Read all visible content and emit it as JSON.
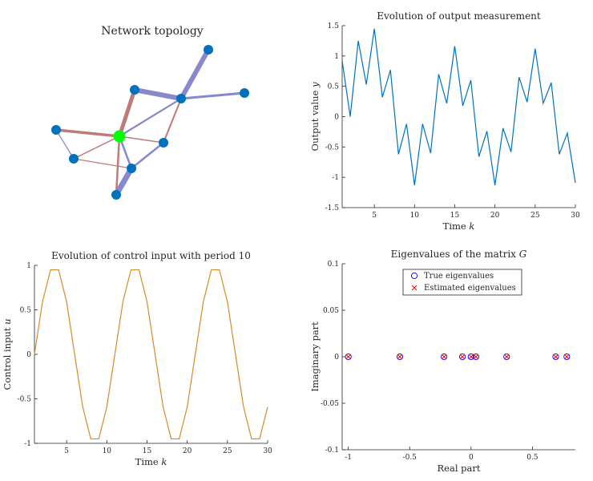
{
  "colors": {
    "node": "#0072BD",
    "hub_node": "#00FF00",
    "edge_red": "#B86B6B",
    "edge_blue": "#7B7BC8",
    "output_line": "#0072BD",
    "control_line": "#D98A2B",
    "true_marker": "#0000FF",
    "est_marker": "#FF0000"
  },
  "chart_data": [
    {
      "id": "topology",
      "type": "network",
      "title": "Network topology",
      "nodes": [
        "n1",
        "n2",
        "n3",
        "n4",
        "n5",
        "n6",
        "n7",
        "n8",
        "n9",
        "n10"
      ],
      "hub": "n2"
    },
    {
      "id": "output",
      "type": "line",
      "title": "Evolution of output measurement",
      "xlabel": "Time k",
      "ylabel": "Output value y",
      "xlim": [
        1,
        30
      ],
      "ylim": [
        -1.5,
        1.5
      ],
      "xticks": [
        5,
        10,
        15,
        20,
        25,
        30
      ],
      "yticks": [
        -1.5,
        -1,
        -0.5,
        0,
        0.5,
        1,
        1.5
      ],
      "x": [
        1,
        2,
        3,
        4,
        5,
        6,
        7,
        8,
        9,
        10,
        11,
        12,
        13,
        14,
        15,
        16,
        17,
        18,
        19,
        20,
        21,
        22,
        23,
        24,
        25,
        26,
        27,
        28,
        29,
        30
      ],
      "values": [
        0.92,
        0.0,
        1.25,
        0.53,
        1.45,
        0.32,
        0.77,
        -0.62,
        -0.12,
        -1.13,
        -0.12,
        -0.6,
        0.7,
        0.22,
        1.16,
        0.18,
        0.6,
        -0.66,
        -0.24,
        -1.13,
        -0.19,
        -0.58,
        0.65,
        0.24,
        1.12,
        0.22,
        0.56,
        -0.62,
        -0.27,
        -1.09
      ]
    },
    {
      "id": "control",
      "type": "line",
      "title": "Evolution of control input with period 10",
      "xlabel": "Time k",
      "ylabel": "Control input u",
      "xlim": [
        1,
        30
      ],
      "ylim": [
        -1,
        1
      ],
      "xticks": [
        5,
        10,
        15,
        20,
        25,
        30
      ],
      "yticks": [
        -1,
        -0.5,
        0,
        0.5,
        1
      ],
      "x": [
        1,
        2,
        3,
        4,
        5,
        6,
        7,
        8,
        9,
        10,
        11,
        12,
        13,
        14,
        15,
        16,
        17,
        18,
        19,
        20,
        21,
        22,
        23,
        24,
        25,
        26,
        27,
        28,
        29,
        30
      ],
      "values": [
        0.0,
        0.59,
        0.95,
        0.95,
        0.59,
        0.0,
        -0.59,
        -0.95,
        -0.95,
        -0.59,
        0.0,
        0.59,
        0.95,
        0.95,
        0.59,
        0.0,
        -0.59,
        -0.95,
        -0.95,
        -0.59,
        0.0,
        0.59,
        0.95,
        0.95,
        0.59,
        0.0,
        -0.59,
        -0.95,
        -0.95,
        -0.59
      ]
    },
    {
      "id": "eigen",
      "type": "scatter",
      "title": "Eigenvalues of the matrix G",
      "xlabel": "Real part",
      "ylabel": "Imaginary part",
      "xlim": [
        -1.05,
        0.85
      ],
      "ylim": [
        -0.1,
        0.1
      ],
      "xticks": [
        -1,
        -0.5,
        0,
        0.5
      ],
      "yticks": [
        -0.1,
        -0.05,
        0,
        0.05,
        0.1
      ],
      "legend_position": "top-center",
      "series": [
        {
          "name": "True eigenvalues",
          "marker": "circle",
          "points": [
            [
              -1,
              0
            ],
            [
              -0.58,
              0
            ],
            [
              -0.22,
              0
            ],
            [
              -0.07,
              0
            ],
            [
              0,
              0
            ],
            [
              0.04,
              0
            ],
            [
              0.29,
              0
            ],
            [
              0.69,
              0
            ],
            [
              0.78,
              0
            ]
          ]
        },
        {
          "name": "Estimated eigenvalues",
          "marker": "x",
          "points": [
            [
              -1,
              0
            ],
            [
              -0.58,
              0
            ],
            [
              -0.22,
              0
            ],
            [
              -0.07,
              0
            ],
            [
              0,
              0
            ],
            [
              0.04,
              0
            ],
            [
              0.29,
              0
            ],
            [
              0.69,
              0
            ],
            [
              0.78,
              0
            ]
          ]
        }
      ]
    }
  ]
}
